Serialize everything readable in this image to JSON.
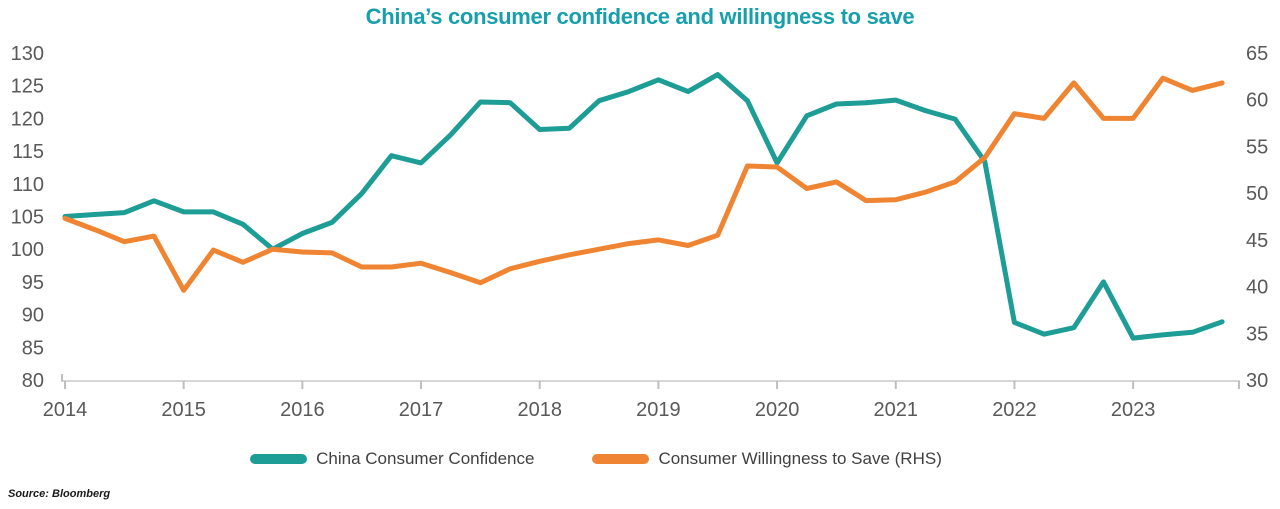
{
  "title": "China’s consumer confidence and willingness to save",
  "title_color": "#17A0AC",
  "source": "Source: Bloomberg",
  "legend": [
    {
      "label": "China Consumer Confidence",
      "color": "#1E9C96"
    },
    {
      "label": "Consumer Willingness to Save (RHS)",
      "color": "#EF8532"
    }
  ],
  "chart_data": {
    "type": "line",
    "title": "China’s consumer confidence and willingness to save",
    "x_tick_labels": [
      "2014",
      "2015",
      "2016",
      "2017",
      "2018",
      "2019",
      "2020",
      "2021",
      "2022",
      "2023"
    ],
    "x": [
      "2014 Q1",
      "2014 Q2",
      "2014 Q3",
      "2014 Q4",
      "2015 Q1",
      "2015 Q2",
      "2015 Q3",
      "2015 Q4",
      "2016 Q1",
      "2016 Q2",
      "2016 Q3",
      "2016 Q4",
      "2017 Q1",
      "2017 Q2",
      "2017 Q3",
      "2017 Q4",
      "2018 Q1",
      "2018 Q2",
      "2018 Q3",
      "2018 Q4",
      "2019 Q1",
      "2019 Q2",
      "2019 Q3",
      "2019 Q4",
      "2020 Q1",
      "2020 Q2",
      "2020 Q3",
      "2020 Q4",
      "2021 Q1",
      "2021 Q2",
      "2021 Q3",
      "2021 Q4",
      "2022 Q1",
      "2022 Q2",
      "2022 Q3",
      "2022 Q4",
      "2023 Q1",
      "2023 Q2",
      "2023 Q3",
      "2023 Q4"
    ],
    "left_axis": {
      "min": 80,
      "max": 130,
      "step": 5,
      "labels": [
        "130",
        "125",
        "120",
        "115",
        "110",
        "105",
        "100",
        "95",
        "90",
        "85",
        "80"
      ]
    },
    "right_axis": {
      "min": 30,
      "max": 65,
      "step": 5,
      "labels": [
        "65",
        "60",
        "55",
        "50",
        "45",
        "40",
        "35",
        "30"
      ]
    },
    "grid": "off",
    "legend_position": "bottom-center",
    "series": [
      {
        "name": "China Consumer Confidence",
        "axis": "left",
        "color": "#1E9C96",
        "values": [
          105.0,
          105.3,
          105.6,
          107.4,
          105.7,
          105.7,
          103.8,
          100.0,
          102.4,
          104.1,
          108.5,
          114.3,
          113.2,
          117.5,
          122.5,
          122.4,
          118.3,
          118.5,
          122.7,
          124.1,
          125.9,
          124.1,
          126.7,
          122.7,
          113.2,
          120.4,
          122.2,
          122.4,
          122.8,
          121.2,
          119.9,
          113.4,
          88.8,
          87.0,
          88.0,
          95.0,
          86.4,
          86.9,
          87.3,
          88.9
        ]
      },
      {
        "name": "Consumer Willingness to Save (RHS)",
        "axis": "right",
        "color": "#EF8532",
        "values": [
          47.3,
          46.1,
          44.8,
          45.4,
          39.6,
          43.9,
          42.6,
          44.0,
          43.7,
          43.6,
          42.1,
          42.1,
          42.5,
          41.5,
          40.4,
          41.9,
          42.7,
          43.4,
          44.0,
          44.6,
          45.0,
          44.4,
          45.5,
          52.9,
          52.8,
          50.5,
          51.2,
          49.2,
          49.3,
          50.1,
          51.2,
          53.8,
          58.5,
          58.0,
          61.8,
          58.0,
          58.0,
          62.3,
          61.0,
          61.8
        ]
      }
    ]
  },
  "axis_style": {
    "line_color": "#D6D6D6",
    "tick_color": "#BFBFBF",
    "text_color": "#595959"
  }
}
